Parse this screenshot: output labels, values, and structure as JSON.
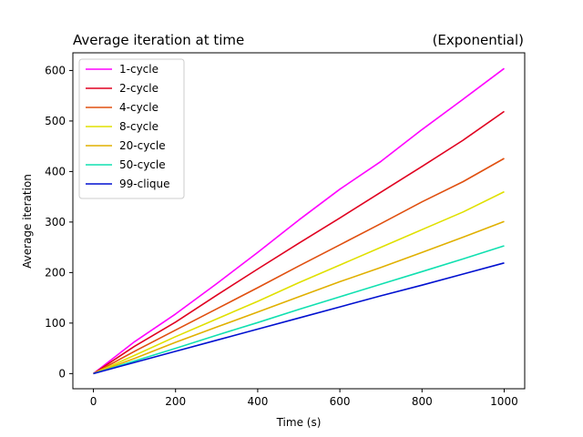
{
  "chart_data": {
    "type": "line",
    "title_left": "Average iteration at time",
    "title_right": "(Exponential)",
    "xlabel": "Time (s)",
    "ylabel": "Average iteration",
    "xlim": [
      -50,
      1050
    ],
    "ylim": [
      -30,
      635
    ],
    "xticks": [
      0,
      200,
      400,
      600,
      800,
      1000
    ],
    "yticks": [
      0,
      100,
      200,
      300,
      400,
      500,
      600
    ],
    "grid": false,
    "legend_position": "upper-left",
    "x": [
      0,
      100,
      200,
      300,
      400,
      500,
      600,
      700,
      800,
      900,
      1000
    ],
    "series": [
      {
        "name": "1-cycle",
        "color": "#ff00ff",
        "values": [
          0,
          63,
          118,
          178,
          240,
          304,
          365,
          420,
          483,
          543,
          604
        ]
      },
      {
        "name": "2-cycle",
        "color": "#e00020",
        "values": [
          0,
          54,
          102,
          155,
          207,
          258,
          308,
          359,
          410,
          462,
          519
        ]
      },
      {
        "name": "4-cycle",
        "color": "#e05010",
        "values": [
          0,
          44,
          86,
          128,
          170,
          213,
          255,
          297,
          340,
          380,
          426
        ]
      },
      {
        "name": "8-cycle",
        "color": "#e0e000",
        "values": [
          0,
          36,
          73,
          108,
          143,
          180,
          215,
          250,
          285,
          320,
          360
        ]
      },
      {
        "name": "20-cycle",
        "color": "#e0b000",
        "values": [
          0,
          30,
          62,
          92,
          122,
          152,
          182,
          210,
          240,
          270,
          301
        ]
      },
      {
        "name": "50-cycle",
        "color": "#10e0b0",
        "values": [
          0,
          25,
          50,
          76,
          101,
          127,
          152,
          177,
          202,
          227,
          253
        ]
      },
      {
        "name": "99-clique",
        "color": "#0010d0",
        "values": [
          0,
          22,
          44,
          66,
          88,
          110,
          132,
          154,
          175,
          197,
          219
        ]
      }
    ]
  }
}
